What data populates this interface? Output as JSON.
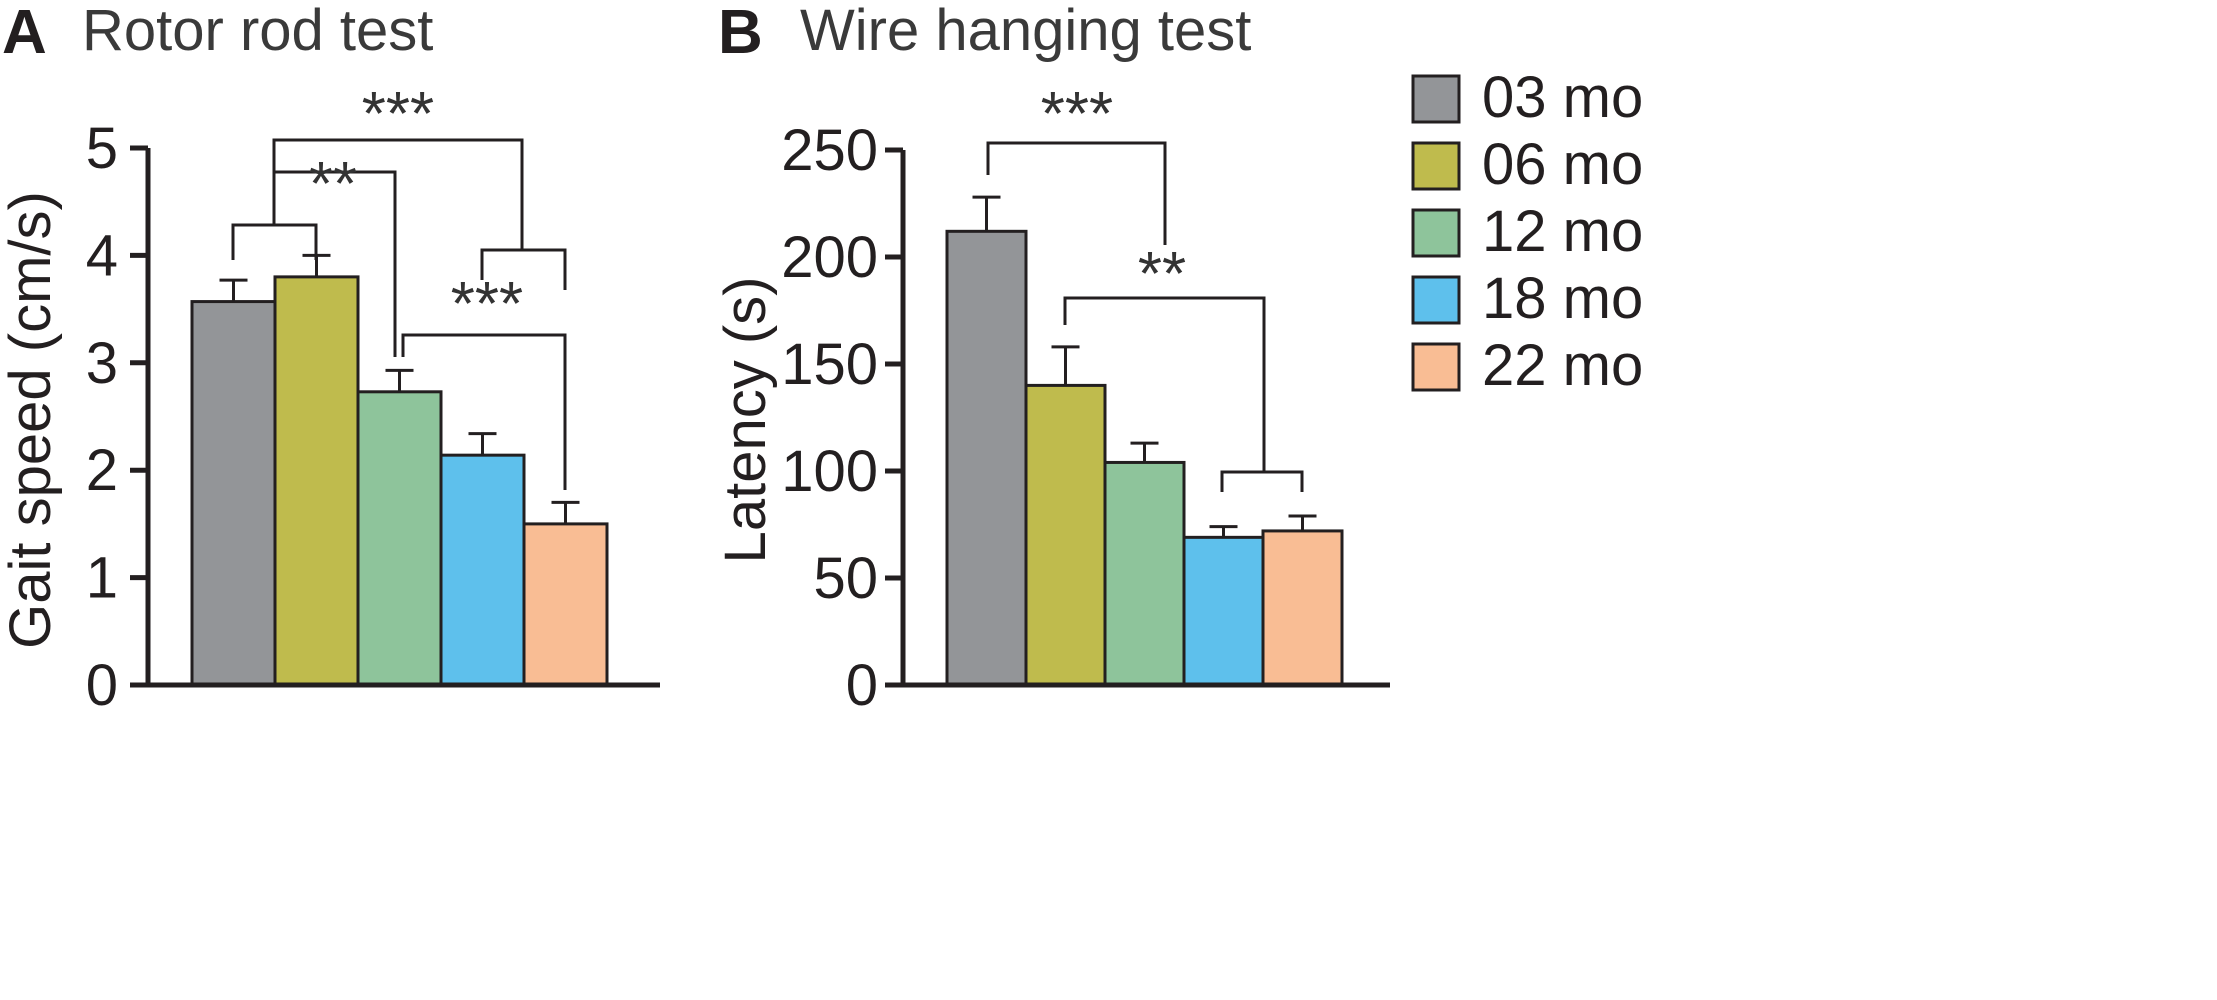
{
  "legend": {
    "items": [
      {
        "label": "03 mo",
        "color": "#939598"
      },
      {
        "label": "06 mo",
        "color": "#bfbb4d"
      },
      {
        "label": "12 mo",
        "color": "#8ec49b"
      },
      {
        "label": "18 mo",
        "color": "#5ec0ec"
      },
      {
        "label": "22 mo",
        "color": "#f9bd94"
      }
    ]
  },
  "chart_data": [
    {
      "type": "bar",
      "panel": "A",
      "title": "Rotor rod test",
      "xlabel": "",
      "ylabel": "Gait speed (cm/s)",
      "ylim": [
        0,
        5
      ],
      "yticks": [
        0,
        1,
        2,
        3,
        4,
        5
      ],
      "categories": [
        "03 mo",
        "06 mo",
        "12 mo",
        "18 mo",
        "22 mo"
      ],
      "values": [
        3.57,
        3.8,
        2.73,
        2.14,
        1.5
      ],
      "errors": [
        0.2,
        0.2,
        0.2,
        0.2,
        0.2
      ],
      "colors": [
        "#939598",
        "#bfbb4d",
        "#8ec49b",
        "#5ec0ec",
        "#f9bd94"
      ],
      "significance": [
        {
          "label": "**",
          "between": "03–06 mo vs 12 mo"
        },
        {
          "label": "***",
          "between": "03–06 mo vs 18–22 mo"
        },
        {
          "label": "***",
          "between": "12 mo vs 22 mo"
        }
      ]
    },
    {
      "type": "bar",
      "panel": "B",
      "title": "Wire hanging test",
      "xlabel": "",
      "ylabel": "Latency (s)",
      "ylim": [
        0,
        250
      ],
      "yticks": [
        0,
        50,
        100,
        150,
        200,
        250
      ],
      "categories": [
        "03 mo",
        "06 mo",
        "12 mo",
        "18 mo",
        "22 mo"
      ],
      "values": [
        212,
        140,
        104,
        69,
        72
      ],
      "errors": [
        16,
        18,
        9,
        5,
        7
      ],
      "colors": [
        "#939598",
        "#bfbb4d",
        "#8ec49b",
        "#5ec0ec",
        "#f9bd94"
      ],
      "significance": [
        {
          "label": "***",
          "between": "03 mo vs 12 mo"
        },
        {
          "label": "**",
          "between": "06 mo vs 18–22 mo"
        }
      ]
    }
  ]
}
